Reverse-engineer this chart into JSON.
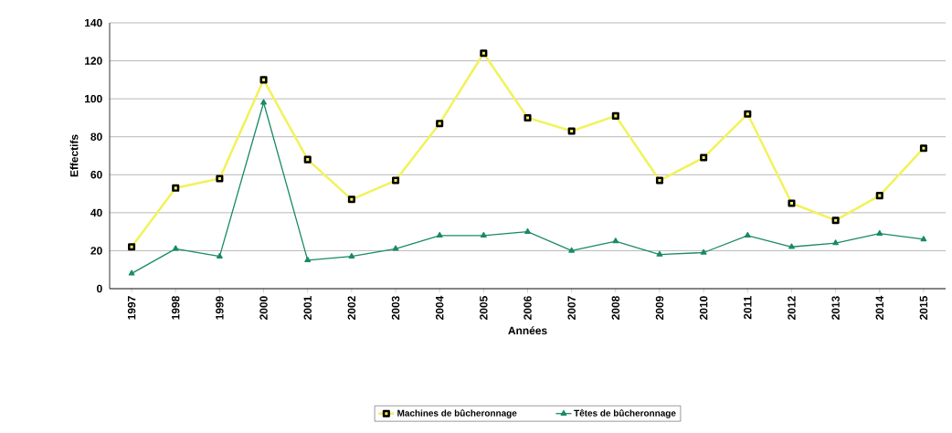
{
  "chart_data": {
    "type": "line",
    "xlabel": "Années",
    "ylabel": "Effectifs",
    "categories": [
      "1997",
      "1998",
      "1999",
      "2000",
      "2001",
      "2002",
      "2003",
      "2004",
      "2005",
      "2006",
      "2007",
      "2008",
      "2009",
      "2010",
      "2011",
      "2012",
      "2013",
      "2014",
      "2015"
    ],
    "series": [
      {
        "name": "Machines de bûcheronnage",
        "color": "#f2f25a",
        "marker": "square",
        "values": [
          22,
          53,
          58,
          110,
          68,
          47,
          57,
          87,
          124,
          90,
          83,
          91,
          57,
          69,
          92,
          45,
          36,
          49,
          74
        ]
      },
      {
        "name": "Têtes de bûcheronnage",
        "color": "#1a8a66",
        "marker": "triangle",
        "values": [
          8,
          21,
          17,
          98,
          15,
          17,
          21,
          28,
          28,
          30,
          20,
          25,
          18,
          19,
          28,
          22,
          24,
          29,
          26
        ]
      }
    ],
    "ylim": [
      0,
      140
    ],
    "yticks": [
      0,
      20,
      40,
      60,
      80,
      100,
      120,
      140
    ],
    "grid": "y",
    "legend": "bottom"
  }
}
